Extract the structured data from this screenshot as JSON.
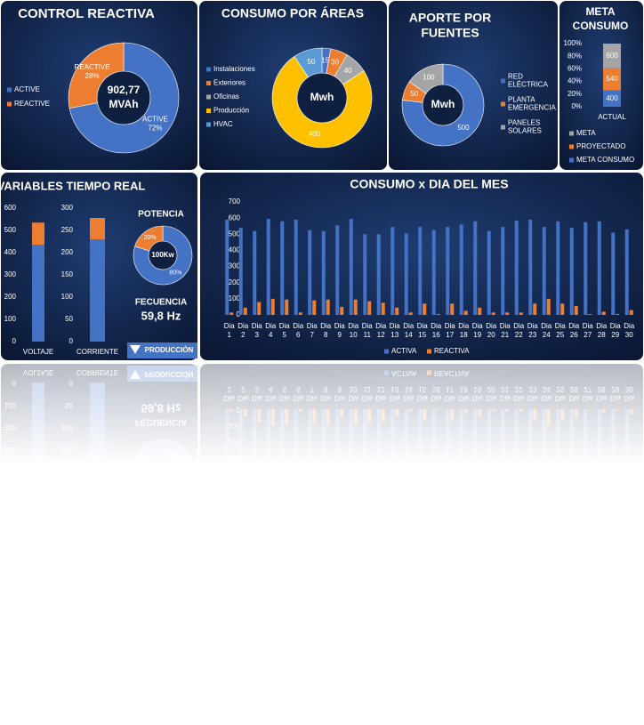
{
  "realtime_panel": {
    "title": "VARIABLES TIEMPO REAL",
    "frequency_label": "FECUENCIA",
    "frequency_value": "59,8 Hz",
    "button": "PRODUCCIÓN"
  },
  "chart_data": [
    {
      "type": "donut",
      "title": "CONTROL REACTIVA",
      "categories": [
        "ACTIVE",
        "REACTIVE"
      ],
      "values": [
        72,
        28
      ],
      "value_labels": [
        "72%",
        "28%"
      ],
      "colors": [
        "#4472c4",
        "#ed7d31"
      ],
      "center_label": [
        "902,77",
        "MVAh"
      ],
      "legend": "left"
    },
    {
      "type": "donut",
      "title": "CONSUMO POR ÁREAS",
      "categories": [
        "Instalaciones",
        "Exteriores",
        "Oficinas",
        "Producción",
        "HVAC"
      ],
      "values": [
        15,
        30,
        40,
        400,
        50
      ],
      "colors": [
        "#4472c4",
        "#ed7d31",
        "#a5a5a5",
        "#ffc000",
        "#5b9bd5"
      ],
      "center_label": [
        "Mwh"
      ],
      "legend": "left"
    },
    {
      "type": "donut",
      "title": "APORTE POR FUENTES",
      "categories": [
        "RED ELÉCTRICA",
        "PLANTA EMERGENCIA",
        "PANELES SOLARES"
      ],
      "values": [
        500,
        50,
        100
      ],
      "colors": [
        "#4472c4",
        "#ed7d31",
        "#a5a5a5"
      ],
      "center_label": [
        "Mwh"
      ],
      "legend": "right"
    },
    {
      "type": "stacked_percent_bar",
      "title": "META CONSUMO",
      "categories": [
        "ACTUAL"
      ],
      "series": [
        {
          "name": "META CONSUMO",
          "color": "#4472c4",
          "values": [
            400
          ]
        },
        {
          "name": "PROYECTADO",
          "color": "#ed7d31",
          "values": [
            540
          ]
        },
        {
          "name": "META",
          "color": "#a5a5a5",
          "values": [
            600
          ]
        }
      ],
      "ylim": [
        0,
        100
      ],
      "yticks": [
        {
          "value": 0,
          "label": "0%"
        },
        {
          "value": 20,
          "label": "20%"
        },
        {
          "value": 40,
          "label": "40%"
        },
        {
          "value": 60,
          "label": "60%"
        },
        {
          "value": 80,
          "label": "80%"
        },
        {
          "value": 100,
          "label": "100%"
        }
      ],
      "legend": "bottom"
    },
    {
      "type": "stacked_bar",
      "categories": [
        "VOLTAJE"
      ],
      "series": [
        {
          "color": "#4472c4",
          "values": [
            435
          ]
        },
        {
          "color": "#ed7d31",
          "values": [
            100
          ]
        }
      ],
      "ylim": [
        0,
        600
      ],
      "yticks": [
        0,
        100,
        200,
        300,
        400,
        500,
        600
      ]
    },
    {
      "type": "stacked_bar",
      "categories": [
        "CORRIENTE"
      ],
      "series": [
        {
          "color": "#4472c4",
          "values": [
            230
          ]
        },
        {
          "color": "#ed7d31",
          "values": [
            48
          ]
        }
      ],
      "ylim": [
        0,
        300
      ],
      "yticks": [
        0,
        50,
        100,
        150,
        200,
        250,
        300
      ]
    },
    {
      "type": "donut",
      "title": "POTENCIA",
      "values": [
        80,
        20
      ],
      "value_labels": [
        "80%",
        "20%"
      ],
      "colors": [
        "#4472c4",
        "#ed7d31"
      ],
      "center_label": [
        "100Kw"
      ]
    },
    {
      "type": "bar",
      "title": "CONSUMO x DIA DEL MES",
      "categories": [
        "Dia 1",
        "Dia 2",
        "Dia 3",
        "Dia 4",
        "Dia 5",
        "Dia 6",
        "Dia 7",
        "Dia 8",
        "Dia 9",
        "Dia 10",
        "Dia 11",
        "Dia 12",
        "Dia 13",
        "Dia 14",
        "Dia 15",
        "Dia 16",
        "Dia 17",
        "Dia 18",
        "Dia 19",
        "Dia 20",
        "Dia 21",
        "Dia 22",
        "Dia 23",
        "Dia 24",
        "Dia 25",
        "Dia 26",
        "Dia 27",
        "Dia 28",
        "Dia 29",
        "Dia 30"
      ],
      "series": [
        {
          "name": "ACTIVA",
          "color": "#4472c4",
          "values": [
            590,
            540,
            520,
            595,
            580,
            590,
            525,
            520,
            555,
            595,
            500,
            500,
            545,
            505,
            545,
            525,
            545,
            560,
            580,
            520,
            545,
            585,
            590,
            545,
            580,
            540,
            575,
            580,
            510,
            530
          ]
        },
        {
          "name": "REACTIVA",
          "color": "#ed7d31",
          "values": [
            15,
            45,
            80,
            100,
            95,
            15,
            90,
            95,
            50,
            95,
            85,
            75,
            45,
            15,
            70,
            5,
            70,
            25,
            45,
            15,
            15,
            15,
            70,
            100,
            70,
            55,
            5,
            20,
            5,
            30
          ]
        }
      ],
      "ylim": [
        0,
        700
      ],
      "yticks": [
        0,
        100,
        200,
        300,
        400,
        500,
        600,
        700
      ],
      "legend": "bottom"
    }
  ]
}
